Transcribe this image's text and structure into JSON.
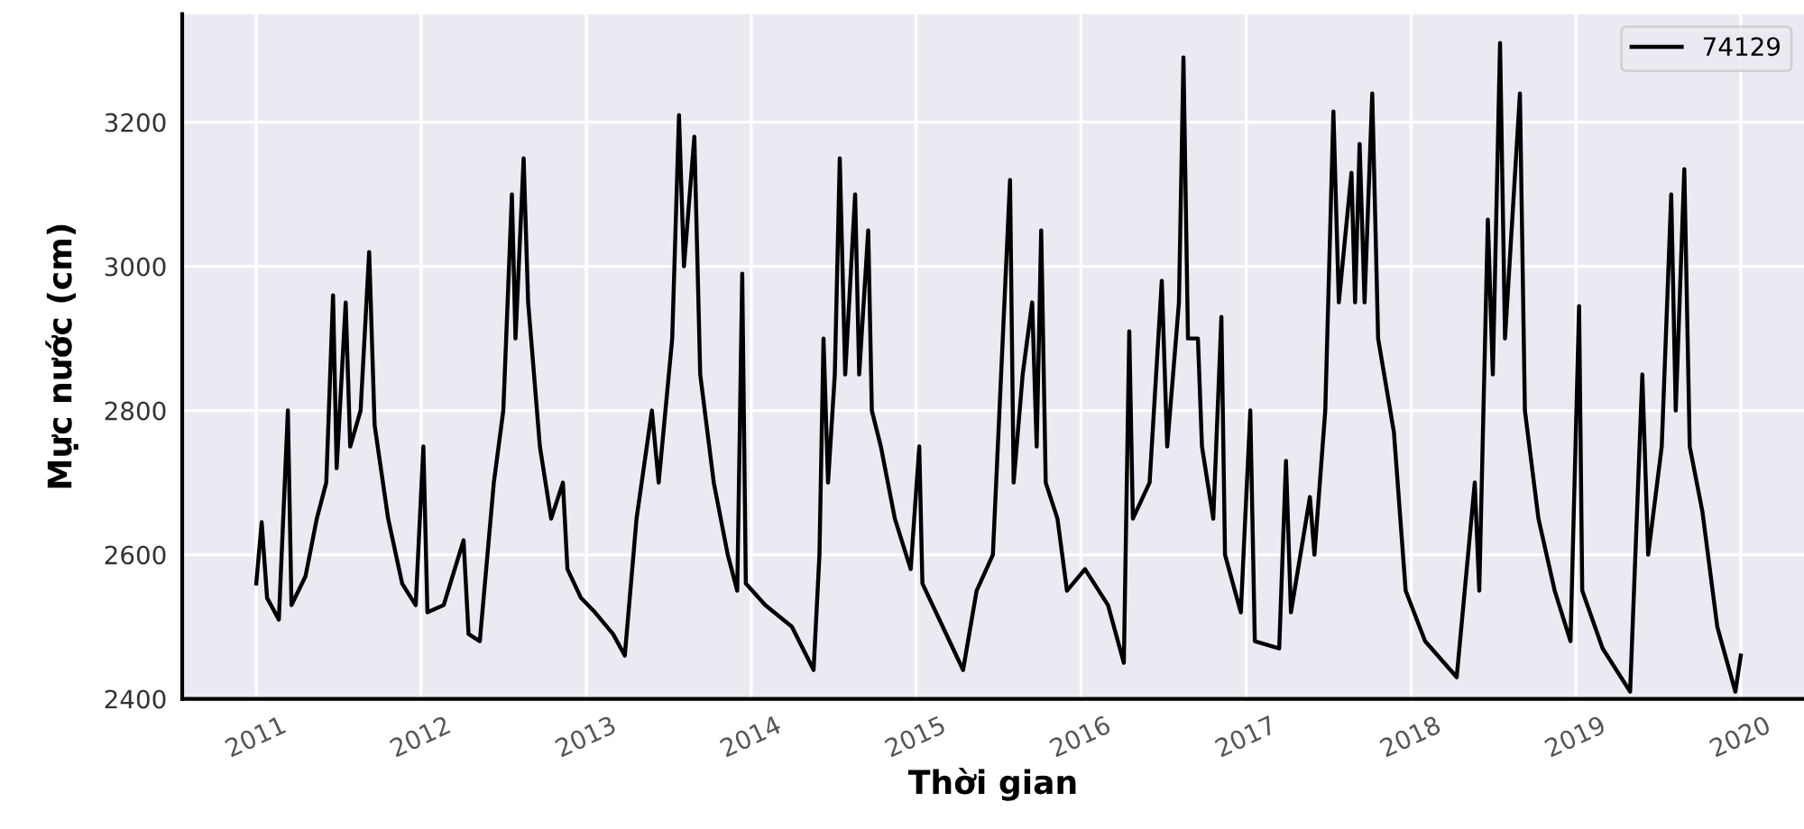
{
  "chart_data": {
    "type": "line",
    "xlabel": "Thời gian",
    "ylabel": "Mực nước (cm)",
    "xlim": [
      "2010-07-21",
      "2020-05-20"
    ],
    "ylim": [
      2400,
      3350
    ],
    "xticks": [
      "2011",
      "2012",
      "2013",
      "2014",
      "2015",
      "2016",
      "2017",
      "2018",
      "2019",
      "2020"
    ],
    "yticks": [
      2400,
      2600,
      2800,
      3000,
      3200
    ],
    "grid": true,
    "legend": "top right",
    "marker": "none",
    "line_style": "solid",
    "x": [
      "2011-01-01",
      "2011-01-13",
      "2011-01-25",
      "2011-02-20",
      "2011-03-12",
      "2011-03-20",
      "2011-04-20",
      "2011-05-15",
      "2011-06-05",
      "2011-06-20",
      "2011-06-28",
      "2011-07-18",
      "2011-07-28",
      "2011-08-20",
      "2011-09-08",
      "2011-09-20",
      "2011-10-20",
      "2011-11-20",
      "2011-12-20",
      "2012-01-06",
      "2012-01-15",
      "2012-02-20",
      "2012-04-04",
      "2012-04-15",
      "2012-05-10",
      "2012-06-10",
      "2012-07-01",
      "2012-07-20",
      "2012-07-28",
      "2012-08-15",
      "2012-08-25",
      "2012-09-20",
      "2012-10-15",
      "2012-11-10",
      "2012-11-20",
      "2012-12-20",
      "2013-01-20",
      "2013-03-01",
      "2013-03-27",
      "2013-04-22",
      "2013-05-26",
      "2013-06-10",
      "2013-07-10",
      "2013-07-25",
      "2013-08-05",
      "2013-08-28",
      "2013-09-10",
      "2013-10-10",
      "2013-11-10",
      "2013-12-01",
      "2013-12-12",
      "2013-12-20",
      "2014-02-01",
      "2014-04-01",
      "2014-05-19",
      "2014-06-01",
      "2014-06-10",
      "2014-06-20",
      "2014-07-05",
      "2014-07-16",
      "2014-07-28",
      "2014-08-19",
      "2014-08-28",
      "2014-09-17",
      "2014-09-25",
      "2014-10-15",
      "2014-11-15",
      "2014-12-20",
      "2015-01-08",
      "2015-01-15",
      "2015-03-01",
      "2015-04-15",
      "2015-05-15",
      "2015-06-20",
      "2015-07-28",
      "2015-08-05",
      "2015-08-25",
      "2015-09-15",
      "2015-09-25",
      "2015-10-05",
      "2015-10-15",
      "2015-11-10",
      "2015-12-01",
      "2016-01-10",
      "2016-03-01",
      "2016-04-05",
      "2016-04-17",
      "2016-04-25",
      "2016-06-01",
      "2016-06-28",
      "2016-07-10",
      "2016-08-05",
      "2016-08-15",
      "2016-08-25",
      "2016-09-16",
      "2016-09-25",
      "2016-10-20",
      "2016-11-07",
      "2016-11-15",
      "2016-12-20",
      "2017-01-10",
      "2017-01-20",
      "2017-03-15",
      "2017-03-30",
      "2017-04-10",
      "2017-05-22",
      "2017-06-01",
      "2017-06-25",
      "2017-07-13",
      "2017-07-25",
      "2017-08-22",
      "2017-08-30",
      "2017-09-09",
      "2017-09-20",
      "2017-10-07",
      "2017-10-20",
      "2017-11-24",
      "2017-12-20",
      "2018-02-01",
      "2018-04-12",
      "2018-05-22",
      "2018-06-01",
      "2018-06-20",
      "2018-07-01",
      "2018-07-17",
      "2018-07-28",
      "2018-08-30",
      "2018-09-10",
      "2018-10-10",
      "2018-11-15",
      "2018-12-20",
      "2019-01-08",
      "2019-01-15",
      "2019-03-01",
      "2019-05-01",
      "2019-05-28",
      "2019-06-10",
      "2019-07-10",
      "2019-07-31",
      "2019-08-10",
      "2019-08-29",
      "2019-09-10",
      "2019-10-08",
      "2019-11-10",
      "2019-12-20",
      "2020-01-01"
    ],
    "series": [
      {
        "name": "74129",
        "color": "#000000",
        "values": [
          2560,
          2645,
          2540,
          2510,
          2800,
          2530,
          2570,
          2650,
          2700,
          2960,
          2720,
          2950,
          2750,
          2800,
          3020,
          2780,
          2650,
          2560,
          2530,
          2750,
          2520,
          2530,
          2620,
          2490,
          2480,
          2700,
          2800,
          3100,
          2900,
          3150,
          2950,
          2750,
          2650,
          2700,
          2580,
          2540,
          2520,
          2490,
          2460,
          2650,
          2800,
          2700,
          2900,
          3210,
          3000,
          3180,
          2850,
          2700,
          2600,
          2550,
          2990,
          2560,
          2530,
          2500,
          2440,
          2600,
          2900,
          2700,
          2850,
          3150,
          2850,
          3100,
          2850,
          3050,
          2800,
          2750,
          2650,
          2580,
          2750,
          2560,
          2500,
          2440,
          2550,
          2600,
          3120,
          2700,
          2850,
          2950,
          2750,
          3050,
          2700,
          2650,
          2550,
          2580,
          2530,
          2450,
          2910,
          2650,
          2700,
          2980,
          2750,
          2950,
          3290,
          2900,
          2900,
          2750,
          2650,
          2930,
          2600,
          2520,
          2800,
          2480,
          2470,
          2730,
          2520,
          2680,
          2600,
          2800,
          3215,
          2950,
          3130,
          2950,
          3170,
          2950,
          3240,
          2900,
          2770,
          2550,
          2480,
          2430,
          2700,
          2550,
          3065,
          2850,
          3310,
          2900,
          3240,
          2800,
          2650,
          2550,
          2480,
          2945,
          2550,
          2470,
          2410,
          2850,
          2600,
          2750,
          3100,
          2800,
          3135,
          2750,
          2660,
          2500,
          2410,
          2460
        ]
      }
    ]
  }
}
